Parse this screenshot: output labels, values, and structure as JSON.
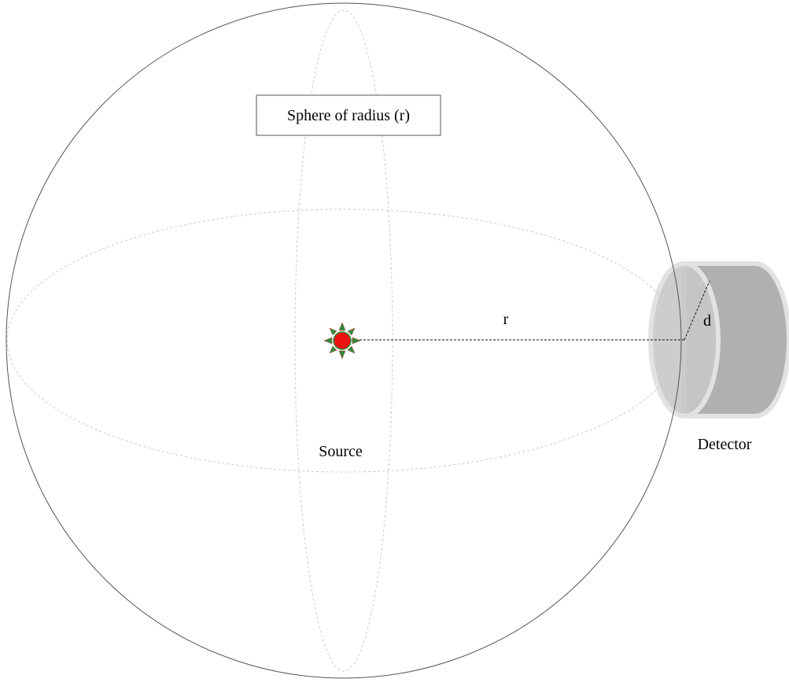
{
  "labels": {
    "sphere": "Sphere of radius (r)",
    "radius": "r",
    "detector_depth": "d",
    "source": "Source",
    "detector": "Detector"
  },
  "colors": {
    "outline": "#555555",
    "guide": "#c8c8c8",
    "source_fill": "#ee1111",
    "source_rays": "#2e8b3a",
    "detector_body": "#b0b0b0",
    "detector_face": "#c8c8c8",
    "detector_rim": "#e2e2e2",
    "dashed_line": "#111111"
  },
  "icons": {
    "source": "radiating-point-source",
    "detector": "cylindrical-detector"
  }
}
